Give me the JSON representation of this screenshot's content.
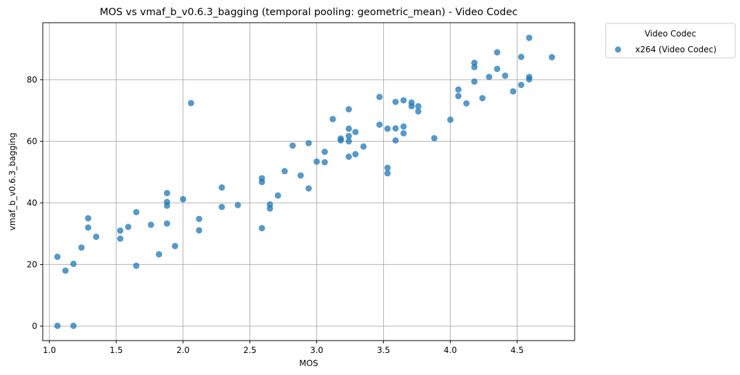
{
  "chart_data": {
    "type": "scatter",
    "title": "MOS vs vmaf_b_v0.6.3_bagging (temporal pooling: geometric_mean) - Video Codec",
    "xlabel": "MOS",
    "ylabel": "vmaf_b_v0.6.3_bagging",
    "xlim": [
      0.95,
      4.93
    ],
    "ylim": [
      -4.7,
      98.5
    ],
    "xticks": [
      "1.0",
      "1.5",
      "2.0",
      "2.5",
      "3.0",
      "3.5",
      "4.0",
      "4.5"
    ],
    "xtick_values": [
      1.0,
      1.5,
      2.0,
      2.5,
      3.0,
      3.5,
      4.0,
      4.5
    ],
    "yticks": [
      "0",
      "20",
      "40",
      "60",
      "80"
    ],
    "ytick_values": [
      0,
      20,
      40,
      60,
      80
    ],
    "grid": true,
    "legend": {
      "title": "Video Codec",
      "placement": "outside-top-right"
    },
    "series": [
      {
        "name": "x264 (Video Codec)",
        "color": "#1f77b4",
        "points": [
          [
            1.06,
            0.1
          ],
          [
            1.18,
            0.1
          ],
          [
            1.06,
            22.5
          ],
          [
            1.12,
            18.0
          ],
          [
            1.18,
            20.2
          ],
          [
            1.24,
            25.5
          ],
          [
            1.29,
            35.0
          ],
          [
            1.29,
            32.0
          ],
          [
            1.35,
            29.0
          ],
          [
            1.53,
            31.0
          ],
          [
            1.53,
            28.4
          ],
          [
            1.59,
            32.2
          ],
          [
            1.65,
            37.0
          ],
          [
            1.65,
            19.6
          ],
          [
            1.76,
            32.9
          ],
          [
            1.82,
            23.3
          ],
          [
            1.88,
            43.2
          ],
          [
            1.88,
            40.3
          ],
          [
            1.88,
            39.1
          ],
          [
            1.88,
            33.3
          ],
          [
            1.94,
            26.0
          ],
          [
            2.0,
            41.2
          ],
          [
            2.06,
            72.4
          ],
          [
            2.12,
            34.8
          ],
          [
            2.12,
            31.1
          ],
          [
            2.29,
            45.0
          ],
          [
            2.29,
            38.7
          ],
          [
            2.41,
            39.3
          ],
          [
            2.59,
            48.0
          ],
          [
            2.59,
            46.8
          ],
          [
            2.59,
            31.8
          ],
          [
            2.65,
            39.5
          ],
          [
            2.65,
            38.2
          ],
          [
            2.71,
            42.4
          ],
          [
            2.76,
            50.3
          ],
          [
            2.82,
            58.6
          ],
          [
            2.88,
            48.9
          ],
          [
            2.94,
            59.4
          ],
          [
            2.94,
            44.7
          ],
          [
            3.0,
            53.4
          ],
          [
            3.06,
            56.6
          ],
          [
            3.06,
            53.2
          ],
          [
            3.12,
            67.2
          ],
          [
            3.18,
            60.9
          ],
          [
            3.18,
            60.3
          ],
          [
            3.24,
            70.4
          ],
          [
            3.24,
            64.1
          ],
          [
            3.24,
            61.7
          ],
          [
            3.24,
            60.0
          ],
          [
            3.24,
            55.0
          ],
          [
            3.29,
            63.0
          ],
          [
            3.29,
            55.8
          ],
          [
            3.35,
            58.3
          ],
          [
            3.47,
            74.4
          ],
          [
            3.47,
            65.4
          ],
          [
            3.53,
            64.1
          ],
          [
            3.53,
            51.4
          ],
          [
            3.53,
            49.6
          ],
          [
            3.59,
            72.8
          ],
          [
            3.59,
            64.2
          ],
          [
            3.59,
            60.3
          ],
          [
            3.65,
            73.3
          ],
          [
            3.65,
            64.8
          ],
          [
            3.65,
            62.6
          ],
          [
            3.71,
            72.6
          ],
          [
            3.71,
            71.4
          ],
          [
            3.76,
            71.4
          ],
          [
            3.76,
            69.7
          ],
          [
            3.88,
            61.0
          ],
          [
            4.0,
            67.0
          ],
          [
            4.06,
            76.8
          ],
          [
            4.06,
            74.7
          ],
          [
            4.12,
            72.3
          ],
          [
            4.18,
            85.5
          ],
          [
            4.18,
            84.1
          ],
          [
            4.18,
            79.4
          ],
          [
            4.24,
            74.0
          ],
          [
            4.29,
            80.9
          ],
          [
            4.35,
            88.9
          ],
          [
            4.35,
            83.5
          ],
          [
            4.41,
            81.3
          ],
          [
            4.47,
            76.2
          ],
          [
            4.53,
            87.4
          ],
          [
            4.53,
            78.3
          ],
          [
            4.59,
            93.6
          ],
          [
            4.59,
            80.9
          ],
          [
            4.59,
            80.1
          ],
          [
            4.76,
            87.3
          ]
        ]
      }
    ]
  }
}
